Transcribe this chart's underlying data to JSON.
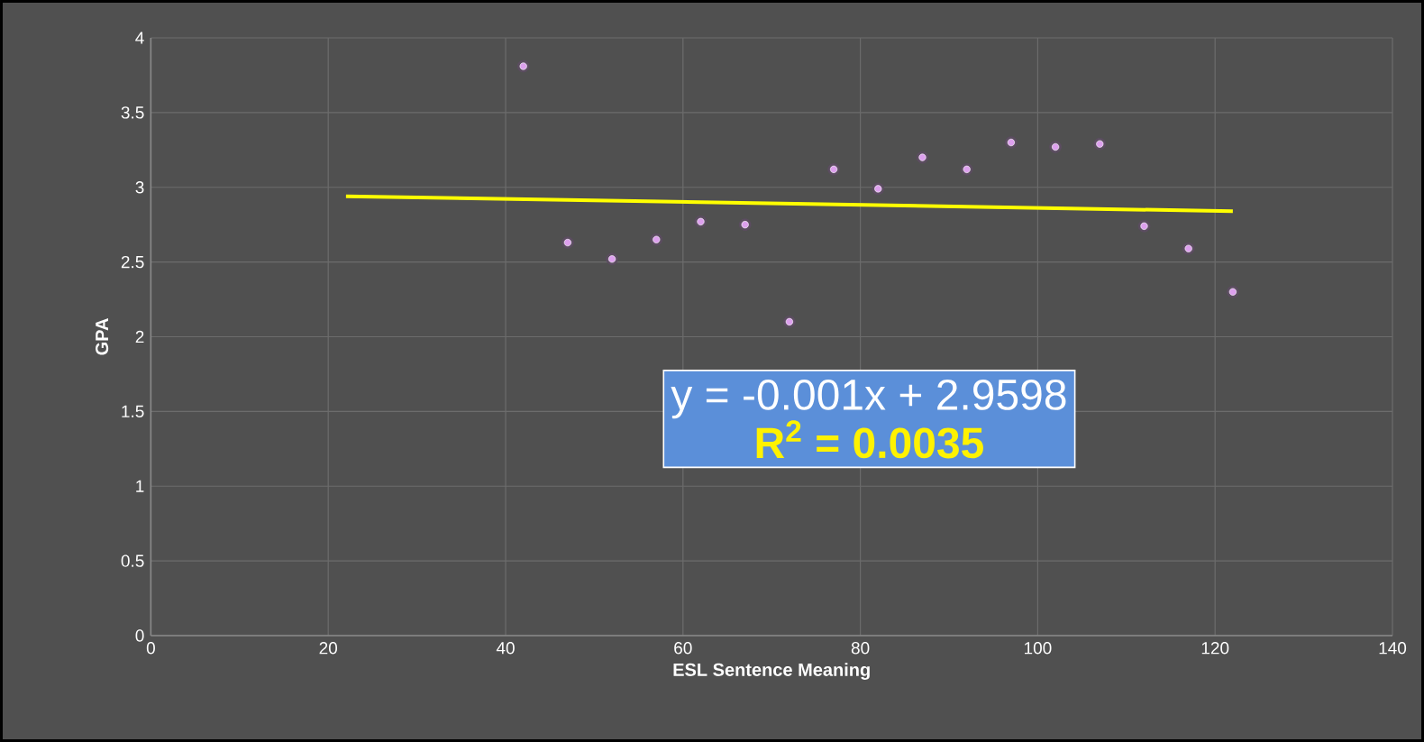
{
  "chart_data": {
    "type": "scatter",
    "xlabel": "ESL Sentence Meaning",
    "ylabel": "GPA",
    "xlim": [
      0,
      140
    ],
    "xticks": [
      0,
      20,
      40,
      60,
      80,
      100,
      120,
      140
    ],
    "ylim": [
      0,
      4
    ],
    "yticks": [
      0,
      0.5,
      1,
      1.5,
      2,
      2.5,
      3,
      3.5,
      4
    ],
    "grid": true,
    "x": [
      42,
      47,
      52,
      57,
      62,
      67,
      72,
      77,
      82,
      87,
      92,
      97,
      102,
      107,
      112,
      117,
      122
    ],
    "series": [
      {
        "marker": "circle",
        "color": "#dda0ee",
        "values": [
          3.81,
          2.63,
          2.52,
          2.65,
          2.77,
          2.75,
          2.1,
          3.12,
          2.99,
          3.2,
          3.12,
          3.3,
          3.27,
          3.29,
          2.74,
          2.59,
          2.3
        ]
      },
      {
        "type": "line",
        "marker": "none",
        "color": "#ffff00",
        "x": [
          22,
          122
        ],
        "values": [
          2.94,
          2.84
        ]
      }
    ],
    "annotations": [
      "y = -0.001x + 2.9598",
      "R$^{2}$ = 0.0035"
    ]
  }
}
